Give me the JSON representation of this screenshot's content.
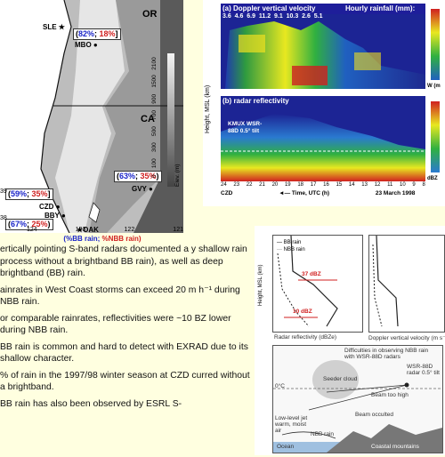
{
  "map": {
    "states": [
      "OR",
      "CA"
    ],
    "sites": [
      "SLE",
      "MBO",
      "GVY",
      "CZD",
      "BBY",
      "OAK"
    ],
    "labels": [
      {
        "bb": "82%",
        "nbb": "18%"
      },
      {
        "bb": "63%",
        "nbb": "35%"
      },
      {
        "bb": "59%",
        "nbb": "35%"
      },
      {
        "bb": "67%",
        "nbb": "25%"
      }
    ],
    "lat_ticks": [
      "39",
      "38"
    ],
    "lon_ticks": [
      "124",
      "123",
      "122",
      "121"
    ],
    "colorbar_ticks": [
      "0",
      "100",
      "300",
      "500",
      "700",
      "900",
      "1500",
      "2100"
    ],
    "colorbar_title": "Elev. (m)",
    "caption": {
      "bb": "(%BB rain;",
      "nbb": "%NBB rain)"
    }
  },
  "bullets": [
    "ertically pointing S-band radars documented a y shallow rain process without a brightband BB rain), as well as deep brightband (BB) rain.",
    "ainrates in West Coast storms can exceed 20 m h⁻¹ during NBB rain.",
    "or comparable rainrates, reflectivities were ~10 BZ lower during NBB rain.",
    "BB rain is common and hard to detect with EXRAD due to its shallow character.",
    "% of rain in the 1997/98 winter season at CZD curred without a brightband.",
    "BB rain has also been observed by ESRL S-"
  ],
  "radar": {
    "panel_a_title": "(a) Doppler vertical velocity",
    "panel_a_header": "Hourly rainfall (mm):",
    "rain_values": [
      "3.6",
      "4.6",
      "6.9",
      "11.2",
      "9.1",
      "10.3",
      "2.6",
      "5.1"
    ],
    "panel_b_title": "(b) radar reflectivity",
    "kmux_label": "KMUX WSR-88D 0.5° tilt",
    "y_axis": "Height, MSL (km)",
    "x_ticks": [
      "24",
      "23",
      "22",
      "21",
      "20",
      "19",
      "18",
      "17",
      "16",
      "15",
      "14",
      "13",
      "12",
      "11",
      "10",
      "9",
      "8"
    ],
    "x_axis": "Time, UTC (h)",
    "date": "23 March 1998",
    "site": "CZD",
    "right_a_units": "W (m",
    "right_b_units": "dBZ"
  },
  "profiles": {
    "legend": [
      "BB rain",
      "NBB rain"
    ],
    "label_37": "37 dBZ",
    "label_10": "10 dBZ",
    "xlabel_left": "Radar reflectivity (dBZe)",
    "xlabel_right": "Doppler vertical velocity (m s⁻¹",
    "ylabel": "Height, MSL (km)",
    "diagram_title": "Difficulties in observing NBB rain with WSR-88D radars",
    "legend_dot": "WSR-88D radar 0.5° tilt",
    "labels": [
      "0°C",
      "Beam too high",
      "Beam occulted",
      "NBB rain",
      "Low-level jet warm, moist air",
      "Seeder cloud",
      "Ocean",
      "Coastal mountains"
    ]
  },
  "colors": {
    "bb": "#1a24c8",
    "nbb": "#d02020",
    "background": "#ffffe0"
  }
}
